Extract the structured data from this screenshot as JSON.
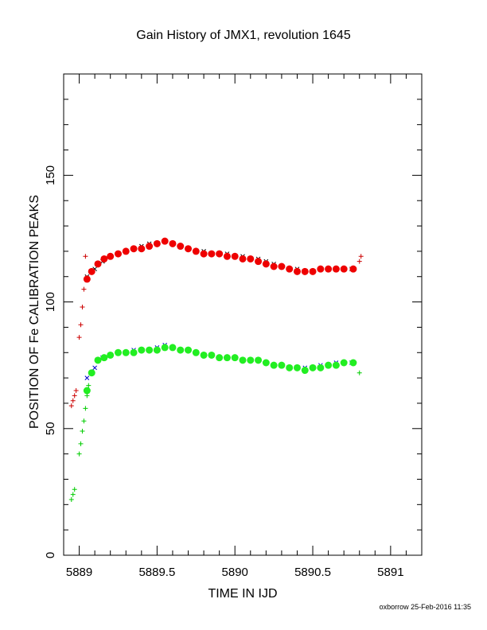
{
  "chart_data": {
    "type": "scatter",
    "title": "Gain History of JMX1, revolution 1645",
    "xlabel": "TIME IN IJD",
    "ylabel": "POSITION OF Fe CALIBRATION PEAKS",
    "xlim": [
      5888.9,
      5891.2
    ],
    "ylim": [
      0,
      190
    ],
    "x_ticks": [
      5889,
      5889.5,
      5890,
      5890.5,
      5891
    ],
    "x_tick_labels": [
      "5889",
      "5889.5",
      "5890",
      "5890.5",
      "5891"
    ],
    "y_ticks": [
      0,
      50,
      100,
      150
    ],
    "y_tick_labels": [
      "0",
      "50",
      "100",
      "150"
    ],
    "grid": false,
    "series": [
      {
        "color": "#000000",
        "marker": "x",
        "x": [
          5889.05,
          5889.1,
          5889.15,
          5889.2,
          5889.25,
          5889.3,
          5889.35,
          5889.4,
          5889.45,
          5889.5,
          5889.55,
          5889.6,
          5889.65,
          5889.7,
          5889.75,
          5889.8,
          5889.85,
          5889.9,
          5889.95,
          5890.0,
          5890.05,
          5890.1,
          5890.15,
          5890.2,
          5890.25,
          5890.3,
          5890.35,
          5890.4,
          5890.45,
          5890.5,
          5890.55,
          5890.6,
          5890.65,
          5890.7,
          5890.75
        ],
        "y": [
          110,
          113,
          116,
          118,
          119,
          120,
          121,
          122,
          123,
          123,
          124,
          123,
          122,
          121,
          120,
          120,
          119,
          119,
          119,
          118,
          118,
          117,
          117,
          116,
          115,
          114,
          113,
          113,
          112,
          112,
          113,
          113,
          113,
          113,
          113
        ]
      },
      {
        "color": "#0000cc",
        "marker": "x",
        "x": [
          5889.05,
          5889.1,
          5889.15,
          5889.2,
          5889.25,
          5889.3,
          5889.35,
          5889.4,
          5889.45,
          5889.5,
          5889.55,
          5889.6,
          5889.65,
          5889.7,
          5889.75,
          5889.8,
          5889.85,
          5889.9,
          5889.95,
          5890.0,
          5890.05,
          5890.1,
          5890.15,
          5890.2,
          5890.25,
          5890.3,
          5890.35,
          5890.4,
          5890.45,
          5890.5,
          5890.55,
          5890.6,
          5890.65,
          5890.7,
          5890.75
        ],
        "y": [
          70,
          74,
          78,
          79,
          80,
          80,
          81,
          81,
          81,
          82,
          83,
          82,
          81,
          81,
          80,
          79,
          79,
          78,
          78,
          78,
          77,
          77,
          77,
          76,
          75,
          75,
          74,
          74,
          74,
          74,
          75,
          75,
          76,
          76,
          76
        ]
      },
      {
        "name": "",
        "color": "#ee0000",
        "marker": "smooth",
        "x": [
          5889.05,
          5889.08,
          5889.12,
          5889.16,
          5889.2,
          5889.25,
          5889.3,
          5889.35,
          5889.4,
          5889.45,
          5889.5,
          5889.55,
          5889.6,
          5889.65,
          5889.7,
          5889.75,
          5889.8,
          5889.85,
          5889.9,
          5889.95,
          5890.0,
          5890.05,
          5890.1,
          5890.15,
          5890.2,
          5890.25,
          5890.3,
          5890.35,
          5890.4,
          5890.45,
          5890.5,
          5890.55,
          5890.6,
          5890.65,
          5890.7,
          5890.76
        ],
        "y": [
          109,
          112,
          115,
          117,
          118,
          119,
          120,
          121,
          121,
          122,
          123,
          124,
          123,
          122,
          121,
          120,
          119,
          119,
          119,
          118,
          118,
          117,
          117,
          116,
          115,
          114,
          114,
          113,
          112,
          112,
          112,
          113,
          113,
          113,
          113,
          113
        ]
      },
      {
        "color": "#22ee22",
        "marker": "smooth",
        "x": [
          5889.05,
          5889.08,
          5889.12,
          5889.16,
          5889.2,
          5889.25,
          5889.3,
          5889.35,
          5889.4,
          5889.45,
          5889.5,
          5889.55,
          5889.6,
          5889.65,
          5889.7,
          5889.75,
          5889.8,
          5889.85,
          5889.9,
          5889.95,
          5890.0,
          5890.05,
          5890.1,
          5890.15,
          5890.2,
          5890.25,
          5890.3,
          5890.35,
          5890.4,
          5890.45,
          5890.5,
          5890.55,
          5890.6,
          5890.65,
          5890.7,
          5890.76
        ],
        "y": [
          65,
          72,
          77,
          78,
          79,
          80,
          80,
          80,
          81,
          81,
          81,
          82,
          82,
          81,
          81,
          80,
          79,
          79,
          78,
          78,
          78,
          77,
          77,
          77,
          76,
          75,
          75,
          74,
          74,
          73,
          74,
          74,
          75,
          75,
          76,
          76
        ]
      },
      {
        "color": "#cc0000",
        "marker": "+",
        "x": [
          5888.95,
          5888.96,
          5888.97,
          5888.98,
          5889.0,
          5889.01,
          5889.02,
          5889.03,
          5889.04,
          5890.8,
          5890.81
        ],
        "y": [
          59,
          61,
          63,
          65,
          86,
          91,
          98,
          105,
          118,
          116,
          118
        ]
      },
      {
        "color": "#00cc00",
        "marker": "+",
        "x": [
          5888.95,
          5888.96,
          5888.97,
          5889.0,
          5889.01,
          5889.02,
          5889.03,
          5889.04,
          5889.05,
          5889.06,
          5890.8
        ],
        "y": [
          22,
          24,
          26,
          40,
          44,
          49,
          53,
          58,
          63,
          67,
          72
        ]
      }
    ]
  },
  "footer": "oxborrow 25-Feb-2016 11:35"
}
